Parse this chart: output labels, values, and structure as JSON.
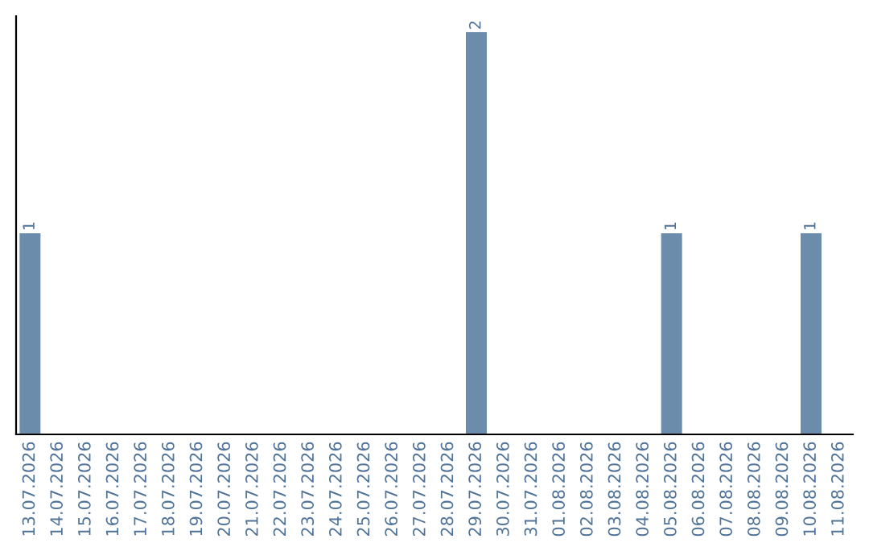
{
  "chart_data": {
    "type": "bar",
    "categories": [
      "13.07.2026",
      "14.07.2026",
      "15.07.2026",
      "16.07.2026",
      "17.07.2026",
      "18.07.2026",
      "19.07.2026",
      "20.07.2026",
      "21.07.2026",
      "22.07.2026",
      "23.07.2026",
      "24.07.2026",
      "25.07.2026",
      "26.07.2026",
      "27.07.2026",
      "28.07.2026",
      "29.07.2026",
      "30.07.2026",
      "31.07.2026",
      "01.08.2026",
      "02.08.2026",
      "03.08.2026",
      "04.08.2026",
      "05.08.2026",
      "06.08.2026",
      "07.08.2026",
      "08.08.2026",
      "09.08.2026",
      "10.08.2026",
      "11.08.2026"
    ],
    "values": [
      1,
      0,
      0,
      0,
      0,
      0,
      0,
      0,
      0,
      0,
      0,
      0,
      0,
      0,
      0,
      0,
      2,
      0,
      0,
      0,
      0,
      0,
      0,
      1,
      0,
      0,
      0,
      0,
      1,
      0
    ],
    "value_labels": [
      "1",
      null,
      null,
      null,
      null,
      null,
      null,
      null,
      null,
      null,
      null,
      null,
      null,
      null,
      null,
      null,
      "2",
      null,
      null,
      null,
      null,
      null,
      null,
      "1",
      null,
      null,
      null,
      null,
      "1",
      null
    ],
    "color": "#6b8cab",
    "ylim": [
      0,
      2.08
    ],
    "tick_labels": "x",
    "grid": false,
    "legend": false
  }
}
